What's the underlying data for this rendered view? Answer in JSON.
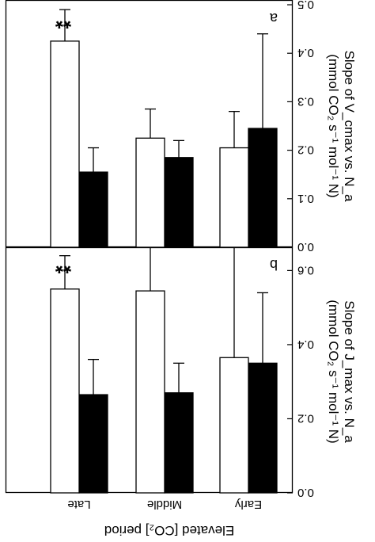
{
  "figure_title": "Elevated [CO₂] period",
  "chart_data": [
    {
      "panel": "a",
      "type": "bar",
      "categories": [
        "Early",
        "Middle",
        "Late"
      ],
      "ylabel": "Slope of V_cmax vs. N_a",
      "yunits": "(mmol CO₂ s⁻¹ mol⁻¹ N)",
      "ylim": [
        0,
        0.5
      ],
      "yticks": [
        "0.0",
        "0.1",
        "0.2",
        "0.3",
        "0.4",
        "0.5"
      ],
      "series": [
        {
          "color": "#000000",
          "values": [
            0.245,
            0.185,
            0.155
          ],
          "errors": [
            0.195,
            0.035,
            0.05
          ]
        },
        {
          "color": "#ffffff",
          "values": [
            0.205,
            0.225,
            0.425
          ],
          "errors": [
            0.075,
            0.06,
            0.065
          ]
        }
      ],
      "significance": [
        "",
        "",
        "**"
      ]
    },
    {
      "panel": "b",
      "type": "bar",
      "categories": [
        "Early",
        "Middle",
        "Late"
      ],
      "ylabel": "Slope of J_max vs. N_a",
      "yunits": "(mmol CO₂ s⁻¹ mol⁻¹ N)",
      "ylim": [
        0,
        0.65
      ],
      "yticks": [
        "0.0",
        "0.2",
        "0.4",
        "0.6"
      ],
      "series": [
        {
          "color": "#000000",
          "values": [
            0.35,
            0.27,
            0.265
          ],
          "errors": [
            0.19,
            0.08,
            0.095
          ]
        },
        {
          "color": "#ffffff",
          "values": [
            0.365,
            0.545,
            0.55
          ],
          "errors": [
            0.31,
            0.145,
            0.09
          ]
        }
      ],
      "significance": [
        "",
        "",
        "**"
      ]
    }
  ]
}
